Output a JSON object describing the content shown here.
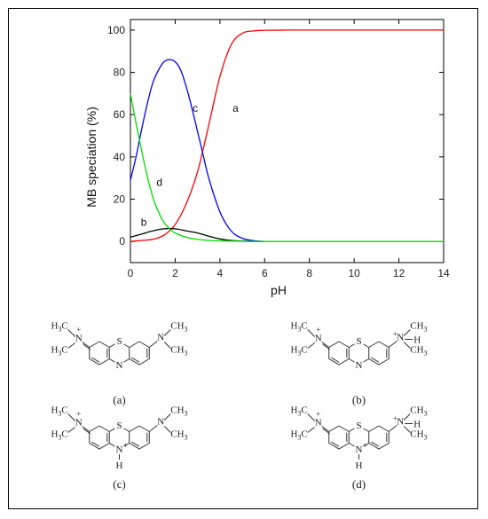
{
  "chart_data": {
    "type": "line",
    "xlabel": "pH",
    "ylabel": "MB speciation (%)",
    "xlim": [
      0,
      14
    ],
    "ylim": [
      -10,
      105
    ],
    "xticks": [
      "0",
      "2",
      "4",
      "6",
      "8",
      "10",
      "12",
      "14"
    ],
    "yticks": [
      "0",
      "20",
      "40",
      "60",
      "80",
      "100"
    ],
    "grid": false,
    "series": [
      {
        "name": "a",
        "color": "#ff0000",
        "x": [
          0,
          0.5,
          1,
          1.5,
          2,
          2.5,
          3,
          3.5,
          4,
          4.5,
          5,
          5.5,
          6,
          7,
          8,
          9,
          10,
          11,
          12,
          13,
          14
        ],
        "y": [
          0,
          0.5,
          1,
          3,
          8,
          18,
          33,
          55,
          78,
          93,
          98.5,
          99.6,
          99.9,
          100,
          100,
          100,
          100,
          100,
          100,
          100,
          100
        ]
      },
      {
        "name": "b",
        "color": "#000000",
        "x": [
          0,
          0.5,
          1,
          1.5,
          2,
          2.5,
          3,
          3.5,
          4,
          4.5,
          5,
          5.5,
          6
        ],
        "y": [
          2,
          3.5,
          5,
          6,
          6,
          5,
          4,
          2.5,
          1.2,
          0.5,
          0.2,
          0.05,
          0
        ]
      },
      {
        "name": "c",
        "color": "#0000ff",
        "x": [
          0,
          0.25,
          0.5,
          0.75,
          1,
          1.25,
          1.5,
          1.75,
          2,
          2.25,
          2.5,
          2.75,
          3,
          3.25,
          3.5,
          4,
          4.5,
          5,
          5.5,
          6
        ],
        "y": [
          29,
          40,
          53,
          65,
          75,
          81,
          85,
          86,
          85,
          81,
          73,
          63,
          52,
          41,
          30,
          14,
          5,
          1.5,
          0.4,
          0
        ]
      },
      {
        "name": "d",
        "color": "#00dd00",
        "x": [
          0,
          0.25,
          0.5,
          0.75,
          1,
          1.25,
          1.5,
          1.75,
          2,
          2.5,
          3,
          3.5,
          4,
          5,
          6,
          8,
          10,
          12,
          14
        ],
        "y": [
          70,
          56,
          43,
          31,
          21,
          14,
          9,
          6,
          4,
          2,
          1,
          0.5,
          0.3,
          0.1,
          0,
          0,
          0,
          0,
          0
        ]
      }
    ],
    "curve_labels": [
      {
        "text": "a",
        "x": 4.7,
        "y": 63
      },
      {
        "text": "b",
        "x": 0.6,
        "y": 9
      },
      {
        "text": "c",
        "x": 2.9,
        "y": 63
      },
      {
        "text": "d",
        "x": 1.3,
        "y": 28
      }
    ]
  },
  "structures": {
    "captions": [
      "(a)",
      "(b)",
      "(c)",
      "(d)"
    ],
    "atoms": {
      "n": "N",
      "s": "S",
      "h": "H",
      "plus": "+",
      "me_h": "H",
      "me_c": "C",
      "me_3": "3"
    }
  }
}
